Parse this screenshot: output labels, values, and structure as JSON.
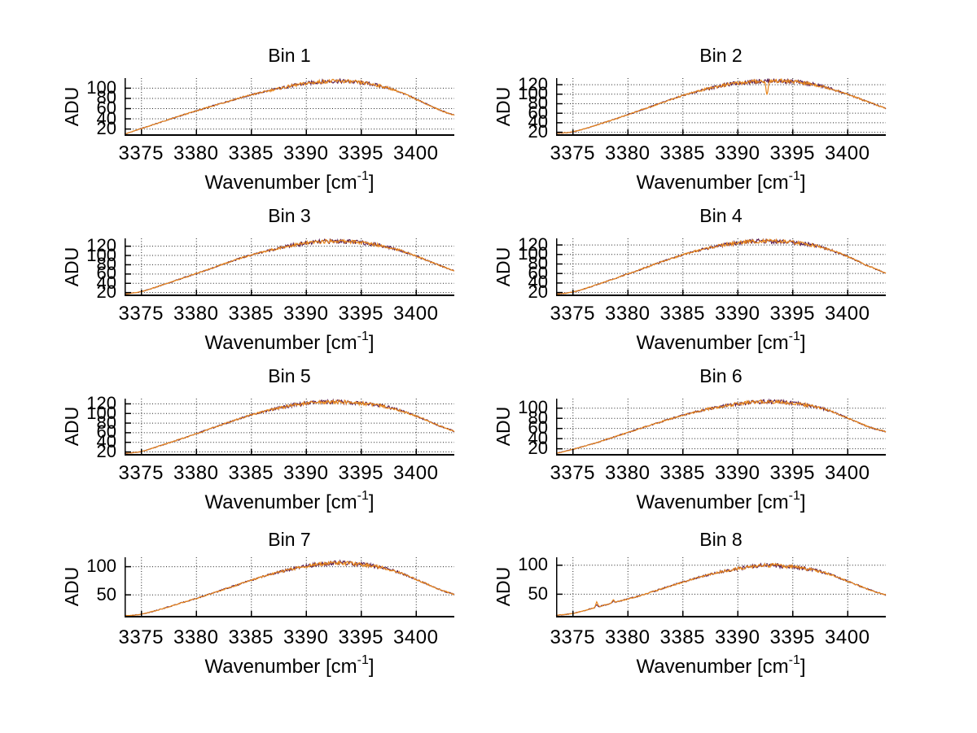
{
  "figure": {
    "background": "#ffffff"
  },
  "chart_data": {
    "type": "line",
    "layout": "grid-4rows-2cols",
    "grid": "dotted",
    "legend": "none",
    "ylabel": "ADU",
    "xlabel": {
      "prefix": "Wavenumber [cm",
      "sup": "-1",
      "suffix": "]"
    },
    "xlim": [
      3373.5,
      3403.5
    ],
    "x_tick_values": [
      3375,
      3380,
      3385,
      3390,
      3395,
      3400
    ],
    "x_tick_labels": [
      "3375",
      "3380",
      "3385",
      "3390",
      "3395",
      "3400"
    ],
    "colors": {
      "main_trace": "#E8861C",
      "overlay_trace": "#54184E",
      "axis": "#000000",
      "grid": "#222222",
      "text": "#000000"
    },
    "series": [
      {
        "name": "spectrum-overlay",
        "color": "#54184E"
      },
      {
        "name": "spectrum-main",
        "color": "#E8861C"
      }
    ],
    "curve_x": [
      3373.5,
      3375,
      3377,
      3379,
      3381,
      3383,
      3385,
      3387,
      3389,
      3391,
      3392.5,
      3394,
      3396,
      3398,
      3400,
      3402,
      3403.5
    ],
    "panels": [
      {
        "title": "Bin 1",
        "yscale": "linear",
        "ylim": [
          9,
          119
        ],
        "y_tick_values": [
          20,
          40,
          60,
          80,
          100
        ],
        "y_tick_labels": [
          "20",
          "40",
          "60",
          "80",
          "100"
        ],
        "curve_y": [
          9,
          20,
          34,
          48,
          61,
          74,
          86,
          96,
          105,
          111,
          113,
          112,
          107,
          96,
          78,
          58,
          46
        ],
        "peak": {
          "x": 3392,
          "y": 113
        },
        "features": {}
      },
      {
        "title": "Bin 2",
        "yscale": "linear",
        "ylim": [
          15,
          133
        ],
        "y_tick_values": [
          20,
          40,
          60,
          80,
          100,
          120
        ],
        "y_tick_labels": [
          "20",
          "40",
          "60",
          "80",
          "100",
          "120"
        ],
        "curve_y": [
          17,
          20,
          33,
          48,
          64,
          80,
          96,
          109,
          119,
          125,
          127,
          127,
          123,
          114,
          99,
          82,
          69
        ],
        "peak": {
          "x": 3392.5,
          "y": 127
        },
        "features": {
          "dip": {
            "x": 3392.7,
            "depth": 26,
            "width": 0.15
          }
        }
      },
      {
        "title": "Bin 3",
        "yscale": "linear",
        "ylim": [
          15,
          136
        ],
        "y_tick_values": [
          20,
          40,
          60,
          80,
          100,
          120
        ],
        "y_tick_labels": [
          "20",
          "40",
          "60",
          "80",
          "100",
          "120"
        ],
        "curve_y": [
          16,
          21,
          36,
          52,
          68,
          85,
          100,
          112,
          122,
          128,
          130,
          129,
          124,
          114,
          98,
          79,
          66
        ],
        "peak": {
          "x": 3392,
          "y": 130
        },
        "features": {}
      },
      {
        "title": "Bin 4",
        "yscale": "linear",
        "ylim": [
          15,
          133
        ],
        "y_tick_values": [
          20,
          40,
          60,
          80,
          100,
          120
        ],
        "y_tick_labels": [
          "20",
          "40",
          "60",
          "80",
          "100",
          "120"
        ],
        "curve_y": [
          16,
          20,
          34,
          50,
          66,
          83,
          98,
          111,
          120,
          126,
          127,
          126,
          122,
          112,
          95,
          74,
          60
        ],
        "peak": {
          "x": 3392.5,
          "y": 127
        },
        "features": {}
      },
      {
        "title": "Bin 5",
        "yscale": "linear",
        "ylim": [
          15,
          130
        ],
        "y_tick_values": [
          20,
          40,
          60,
          80,
          100,
          120
        ],
        "y_tick_labels": [
          "20",
          "40",
          "60",
          "80",
          "100",
          "120"
        ],
        "curve_y": [
          16,
          20,
          34,
          49,
          65,
          81,
          96,
          108,
          117,
          122,
          123,
          122,
          118,
          109,
          94,
          75,
          62
        ],
        "peak": {
          "x": 3392,
          "y": 123
        },
        "features": {}
      },
      {
        "title": "Bin 6",
        "yscale": "linear",
        "ylim": [
          9,
          118
        ],
        "y_tick_values": [
          20,
          40,
          60,
          80,
          100
        ],
        "y_tick_labels": [
          "20",
          "40",
          "60",
          "80",
          "100"
        ],
        "curve_y": [
          10,
          18,
          30,
          44,
          58,
          72,
          85,
          96,
          104,
          110,
          112,
          111,
          106,
          97,
          80,
          62,
          53
        ],
        "peak": {
          "x": 3392,
          "y": 112
        },
        "features": {}
      },
      {
        "title": "Bin 7",
        "yscale": "linear",
        "ylim": [
          12,
          116
        ],
        "y_tick_values": [
          50,
          100
        ],
        "y_tick_labels": [
          "50",
          "100"
        ],
        "curve_y": [
          12,
          15,
          25,
          37,
          49,
          62,
          75,
          87,
          96,
          103,
          106,
          105,
          101,
          92,
          77,
          60,
          50
        ],
        "peak": {
          "x": 3392,
          "y": 106
        },
        "features": {}
      },
      {
        "title": "Bin 8",
        "yscale": "linear",
        "ylim": [
          12,
          113
        ],
        "y_tick_values": [
          50,
          100
        ],
        "y_tick_labels": [
          "50",
          "100"
        ],
        "curve_y": [
          13,
          16,
          26,
          36,
          46,
          58,
          70,
          81,
          90,
          96,
          99,
          98,
          94,
          86,
          72,
          57,
          48
        ],
        "peak": {
          "x": 3392.5,
          "y": 99
        },
        "features": {
          "spikes": [
            {
              "x": 3377.2,
              "height": 9,
              "width": 0.12
            },
            {
              "x": 3378.7,
              "height": 5,
              "width": 0.12
            }
          ]
        }
      }
    ]
  }
}
